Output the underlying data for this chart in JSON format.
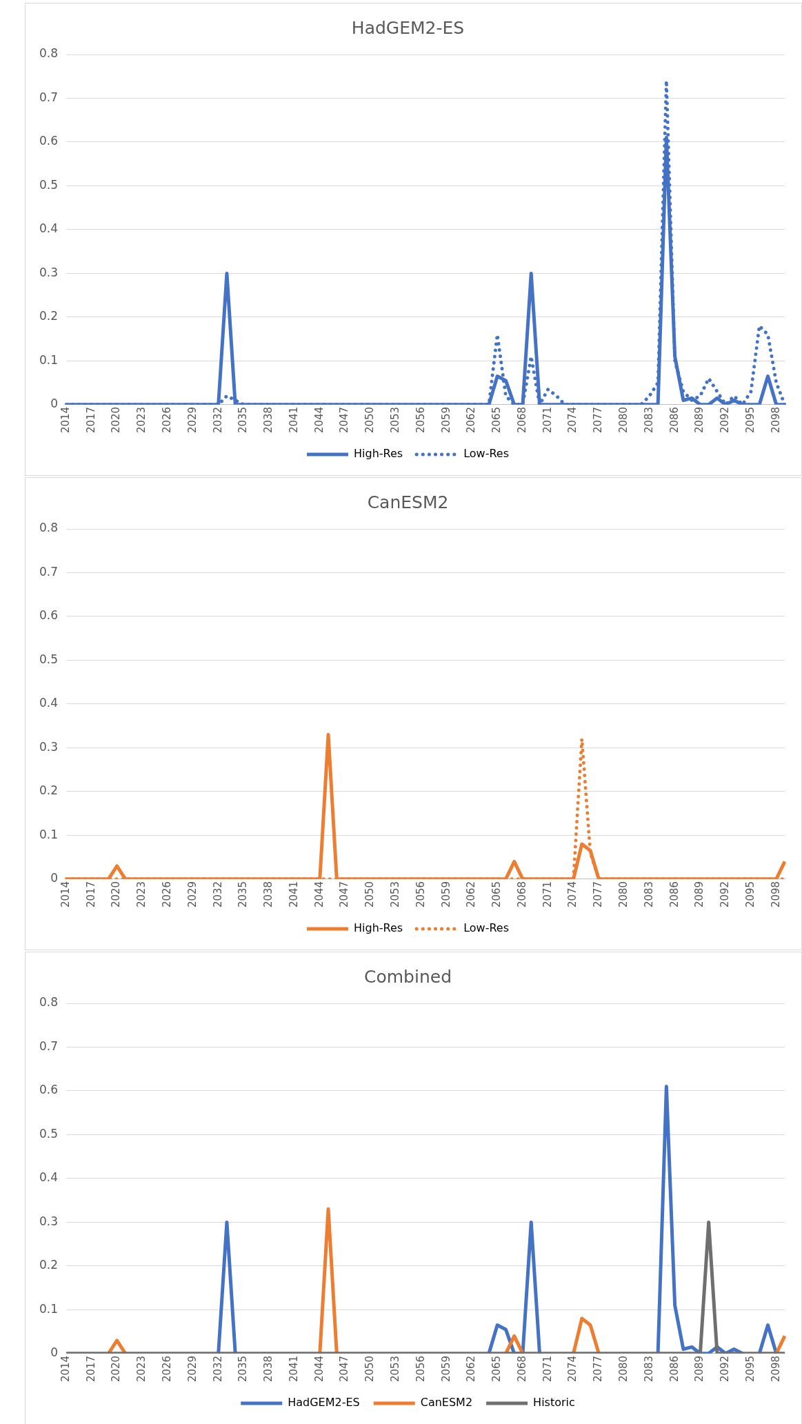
{
  "chart_data": [
    {
      "type": "line",
      "title": "HadGEM2-ES",
      "categories": [
        "2014",
        null,
        null,
        "2017",
        null,
        null,
        "2020",
        null,
        null,
        "2023",
        null,
        null,
        "2026",
        null,
        null,
        "2029",
        null,
        null,
        "2032",
        null,
        null,
        "2035",
        null,
        null,
        "2038",
        null,
        null,
        "2041",
        null,
        null,
        "2044",
        null,
        null,
        "2047",
        null,
        null,
        "2050",
        null,
        null,
        "2053",
        null,
        null,
        "2056",
        null,
        null,
        "2059",
        null,
        null,
        "2062",
        null,
        null,
        "2065",
        null,
        null,
        "2068",
        null,
        null,
        "2071",
        null,
        null,
        "2074",
        null,
        null,
        "2077",
        null,
        null,
        "2080",
        null,
        null,
        "2083",
        null,
        null,
        "2086",
        null,
        null,
        "2089",
        null,
        null,
        "2092",
        null,
        null,
        "2095",
        null,
        null,
        "2098",
        null
      ],
      "series": [
        {
          "name": "High-Res",
          "color": "#4472c4",
          "line_style": "solid",
          "values": [
            0,
            0,
            0,
            0,
            0,
            0,
            0,
            0,
            0,
            0,
            0,
            0,
            0,
            0,
            0,
            0,
            0,
            0,
            0,
            0.3,
            0,
            0,
            0,
            0,
            0,
            0,
            0,
            0,
            0,
            0,
            0,
            0,
            0,
            0,
            0,
            0,
            0,
            0,
            0,
            0,
            0,
            0,
            0,
            0,
            0,
            0,
            0,
            0,
            0,
            0,
            0,
            0.065,
            0.055,
            0,
            0,
            0.3,
            0,
            0,
            0,
            0,
            0,
            0,
            0,
            0,
            0,
            0,
            0,
            0,
            0,
            0,
            0,
            0.61,
            0.11,
            0.01,
            0.015,
            0,
            0,
            0.015,
            0,
            0.01,
            0,
            0,
            0,
            0.065,
            0,
            0
          ]
        },
        {
          "name": "Low-Res",
          "color": "#4472c4",
          "line_style": "dotted",
          "values": [
            0,
            0,
            0,
            0,
            0,
            0,
            0,
            0,
            0,
            0,
            0,
            0,
            0,
            0,
            0,
            0,
            0,
            0,
            0,
            0.02,
            0.01,
            0,
            0,
            0,
            0,
            0,
            0,
            0,
            0,
            0,
            0,
            0,
            0,
            0,
            0,
            0,
            0,
            0,
            0,
            0,
            0,
            0,
            0,
            0,
            0,
            0,
            0,
            0,
            0,
            0,
            0,
            0.16,
            0.02,
            0,
            0,
            0.11,
            0,
            0.035,
            0.02,
            0,
            0,
            0,
            0,
            0,
            0,
            0,
            0,
            0,
            0,
            0.02,
            0.05,
            0.74,
            0.1,
            0.03,
            0.01,
            0.02,
            0.06,
            0.03,
            0,
            0.02,
            0,
            0.03,
            0.18,
            0.16,
            0.05,
            0
          ]
        }
      ],
      "ylim": [
        0,
        0.8
      ],
      "yticks": [
        0,
        0.1,
        0.2,
        0.3,
        0.4,
        0.5,
        0.6,
        0.7,
        0.8
      ],
      "grid": "y",
      "legend": "bottom",
      "marker": "none"
    },
    {
      "type": "line",
      "title": "CanESM2",
      "categories": [
        "2014",
        null,
        null,
        "2017",
        null,
        null,
        "2020",
        null,
        null,
        "2023",
        null,
        null,
        "2026",
        null,
        null,
        "2029",
        null,
        null,
        "2032",
        null,
        null,
        "2035",
        null,
        null,
        "2038",
        null,
        null,
        "2041",
        null,
        null,
        "2044",
        null,
        null,
        "2047",
        null,
        null,
        "2050",
        null,
        null,
        "2053",
        null,
        null,
        "2056",
        null,
        null,
        "2059",
        null,
        null,
        "2062",
        null,
        null,
        "2065",
        null,
        null,
        "2068",
        null,
        null,
        "2071",
        null,
        null,
        "2074",
        null,
        null,
        "2077",
        null,
        null,
        "2080",
        null,
        null,
        "2083",
        null,
        null,
        "2086",
        null,
        null,
        "2089",
        null,
        null,
        "2092",
        null,
        null,
        "2095",
        null,
        null,
        "2098",
        null
      ],
      "series": [
        {
          "name": "High-Res",
          "color": "#ed7d31",
          "line_style": "solid",
          "values": [
            0,
            0,
            0,
            0,
            0,
            0,
            0.03,
            0,
            0,
            0,
            0,
            0,
            0,
            0,
            0,
            0,
            0,
            0,
            0,
            0,
            0,
            0,
            0,
            0,
            0,
            0,
            0,
            0,
            0,
            0,
            0,
            0.33,
            0,
            0,
            0,
            0,
            0,
            0,
            0,
            0,
            0,
            0,
            0,
            0,
            0,
            0,
            0,
            0,
            0,
            0,
            0,
            0,
            0,
            0.04,
            0,
            0,
            0,
            0,
            0,
            0,
            0,
            0.08,
            0.065,
            0,
            0,
            0,
            0,
            0,
            0,
            0,
            0,
            0,
            0,
            0,
            0,
            0,
            0,
            0,
            0,
            0,
            0,
            0,
            0,
            0,
            0,
            0.04
          ]
        },
        {
          "name": "Low-Res",
          "color": "#ed7d31",
          "line_style": "dotted",
          "values": [
            0,
            0,
            0,
            0,
            0,
            0,
            0,
            0,
            0,
            0,
            0,
            0,
            0,
            0,
            0,
            0,
            0,
            0,
            0,
            0,
            0,
            0,
            0,
            0,
            0,
            0,
            0,
            0,
            0,
            0,
            0,
            0,
            0,
            0,
            0,
            0,
            0,
            0,
            0,
            0,
            0,
            0,
            0,
            0,
            0,
            0,
            0,
            0,
            0,
            0,
            0,
            0,
            0,
            0,
            0,
            0,
            0,
            0,
            0,
            0,
            0,
            0.32,
            0.06,
            0,
            0,
            0,
            0,
            0,
            0,
            0,
            0,
            0,
            0,
            0,
            0,
            0,
            0,
            0,
            0,
            0,
            0,
            0,
            0,
            0,
            0,
            0
          ]
        }
      ],
      "ylim": [
        0,
        0.8
      ],
      "yticks": [
        0,
        0.1,
        0.2,
        0.3,
        0.4,
        0.5,
        0.6,
        0.7,
        0.8
      ],
      "grid": "y",
      "legend": "bottom",
      "marker": "none"
    },
    {
      "type": "line",
      "title": "Combined",
      "categories": [
        "2014",
        null,
        null,
        "2017",
        null,
        null,
        "2020",
        null,
        null,
        "2023",
        null,
        null,
        "2026",
        null,
        null,
        "2029",
        null,
        null,
        "2032",
        null,
        null,
        "2035",
        null,
        null,
        "2038",
        null,
        null,
        "2041",
        null,
        null,
        "2044",
        null,
        null,
        "2047",
        null,
        null,
        "2050",
        null,
        null,
        "2053",
        null,
        null,
        "2056",
        null,
        null,
        "2059",
        null,
        null,
        "2062",
        null,
        null,
        "2065",
        null,
        null,
        "2068",
        null,
        null,
        "2071",
        null,
        null,
        "2074",
        null,
        null,
        "2077",
        null,
        null,
        "2080",
        null,
        null,
        "2083",
        null,
        null,
        "2086",
        null,
        null,
        "2089",
        null,
        null,
        "2092",
        null,
        null,
        "2095",
        null,
        null,
        "2098",
        null
      ],
      "series": [
        {
          "name": "HadGEM2-ES",
          "color": "#4472c4",
          "line_style": "solid",
          "values": [
            null,
            null,
            null,
            null,
            null,
            null,
            null,
            null,
            null,
            null,
            null,
            null,
            null,
            null,
            null,
            null,
            null,
            null,
            0,
            0.3,
            0,
            null,
            null,
            null,
            null,
            null,
            null,
            null,
            null,
            null,
            null,
            null,
            null,
            null,
            null,
            null,
            null,
            null,
            null,
            null,
            null,
            null,
            null,
            null,
            null,
            null,
            null,
            null,
            null,
            null,
            0,
            0.065,
            0.055,
            0,
            0,
            0.3,
            0,
            null,
            null,
            null,
            null,
            null,
            null,
            null,
            null,
            null,
            null,
            null,
            null,
            null,
            0,
            0.61,
            0.11,
            0.01,
            0.015,
            0,
            0,
            0.015,
            0,
            0.01,
            0,
            null,
            0,
            0.065,
            0,
            null
          ]
        },
        {
          "name": "CanESM2",
          "color": "#ed7d31",
          "line_style": "solid",
          "values": [
            null,
            null,
            null,
            null,
            null,
            0,
            0.03,
            0,
            null,
            null,
            null,
            null,
            null,
            null,
            null,
            null,
            null,
            null,
            null,
            null,
            null,
            null,
            null,
            null,
            null,
            null,
            null,
            null,
            null,
            null,
            0,
            0.33,
            0,
            null,
            null,
            null,
            null,
            null,
            null,
            null,
            null,
            null,
            null,
            null,
            null,
            null,
            null,
            null,
            null,
            null,
            null,
            null,
            0,
            0.04,
            0,
            null,
            null,
            null,
            null,
            null,
            0,
            0.08,
            0.065,
            0,
            null,
            null,
            null,
            null,
            null,
            null,
            null,
            null,
            null,
            null,
            null,
            null,
            null,
            null,
            null,
            null,
            null,
            null,
            null,
            null,
            0,
            0.04
          ]
        },
        {
          "name": "Historic",
          "color": "#6f6f6f",
          "line_style": "solid",
          "values": [
            0,
            0,
            0,
            0,
            0,
            0,
            0,
            0,
            0,
            0,
            0,
            0,
            0,
            0,
            0,
            0,
            0,
            0,
            0,
            0,
            0,
            0,
            0,
            0,
            0,
            0,
            0,
            0,
            0,
            0,
            0,
            0,
            0,
            0,
            0,
            0,
            0,
            0,
            0,
            0,
            0,
            0,
            0,
            0,
            0,
            0,
            0,
            0,
            0,
            0,
            0,
            0,
            0,
            0,
            0,
            0,
            0,
            0,
            0,
            0,
            0,
            0,
            0,
            0,
            0,
            0,
            0,
            0,
            0,
            0,
            0,
            0,
            0,
            0,
            0,
            0,
            0.3,
            0,
            0,
            0,
            0,
            0,
            0,
            0,
            0,
            0
          ]
        }
      ],
      "ylim": [
        0,
        0.8
      ],
      "yticks": [
        0,
        0.1,
        0.2,
        0.3,
        0.4,
        0.5,
        0.6,
        0.7,
        0.8
      ],
      "grid": "y",
      "legend": "bottom",
      "marker": "none"
    }
  ]
}
